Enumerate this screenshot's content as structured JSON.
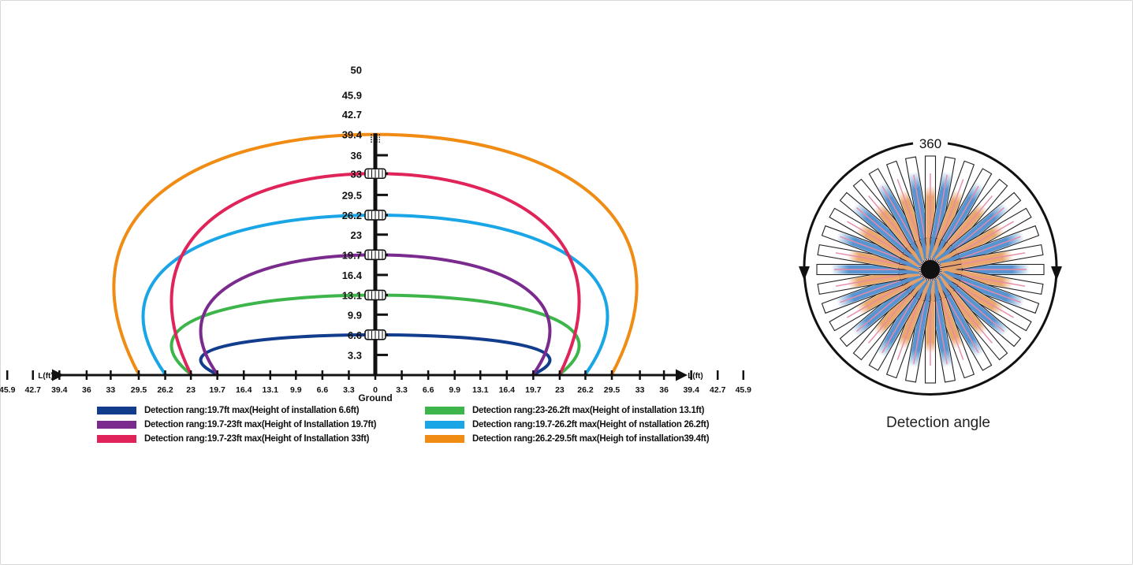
{
  "range_chart": {
    "height_ticks": [
      "50",
      "45.9",
      "42.7",
      "39.4",
      "36",
      "33",
      "29.5",
      "26.2",
      "23",
      "19.7",
      "16.4",
      "13.1",
      "9.9",
      "6.6",
      "3.3"
    ],
    "x_ticks": [
      "45.9",
      "42.7",
      "39.4",
      "36",
      "33",
      "29.5",
      "26.2",
      "23",
      "19.7",
      "16.4",
      "13.1",
      "9.9",
      "6.6",
      "3.3",
      "0",
      "3.3",
      "6.6",
      "9.9",
      "13.1",
      "16.4",
      "19.7",
      "23",
      "26.2",
      "29.5",
      "33",
      "36",
      "39.4",
      "42.7",
      "45.9"
    ],
    "x_axis_left_label": "L(ft)",
    "x_axis_right_label": "L(ft)",
    "ground_label": "Ground",
    "curves": [
      {
        "install_height_ft": 6.6,
        "range_ft": 19.7,
        "color": "#123c8c"
      },
      {
        "install_height_ft": 13.1,
        "range_ft": 23,
        "color": "#3db54a"
      },
      {
        "install_height_ft": 19.7,
        "range_ft": 19.7,
        "color": "#7b2a8e"
      },
      {
        "install_height_ft": 26.2,
        "range_ft": 26.2,
        "color": "#1aa6e6"
      },
      {
        "install_height_ft": 33,
        "range_ft": 23,
        "color": "#e0245a"
      },
      {
        "install_height_ft": 39.4,
        "range_ft": 29.5,
        "color": "#f08c14"
      }
    ],
    "legend": [
      {
        "text": "Detection rang:19.7ft max(Height of installation 6.6ft)",
        "color": "#123c8c"
      },
      {
        "text": "Detection rang:19.7-23ft max(Height of Installation 19.7ft)",
        "color": "#7b2a8e"
      },
      {
        "text": "Detection rang:19.7-23ft max(Height of Installation 33ft)",
        "color": "#e0245a"
      },
      {
        "text": "Detection rang:23-26.2ft max(Height of installation 13.1ft)",
        "color": "#3db54a"
      },
      {
        "text": "Detection rang:19.7-26.2ft max(Height of nstallation 26.2ft)",
        "color": "#1aa6e6"
      },
      {
        "text": "Detection rang:26.2-29.5ft max(Heigh tof installation39.4ft)",
        "color": "#f08c14"
      }
    ]
  },
  "angle_diagram": {
    "angle_label": "360",
    "caption": "Detection angle",
    "ray_count": 36,
    "colors": {
      "blue": "#4f8fcf",
      "orange": "#e8a266",
      "pink": "#e98aa6",
      "outline": "#222222"
    }
  }
}
